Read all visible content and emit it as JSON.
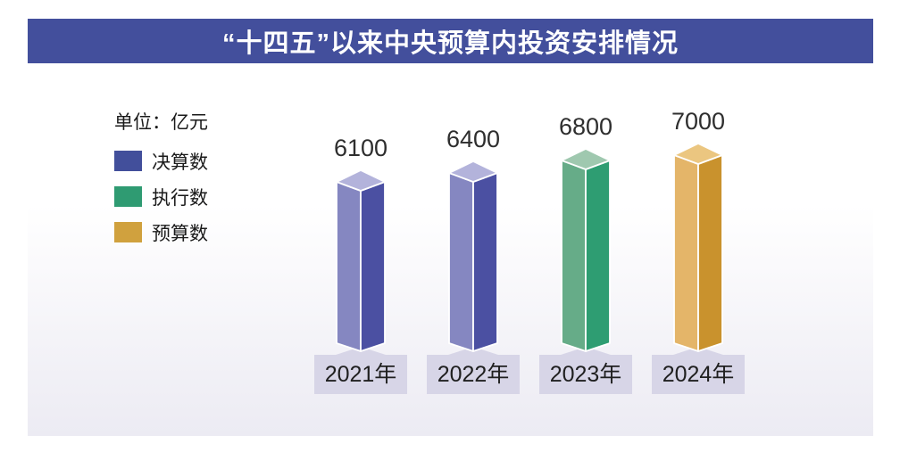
{
  "header": {
    "title": "“十四五”以来中央预算内投资安排情况"
  },
  "legend": {
    "unit_label": "单位：亿元",
    "items": [
      {
        "label": "决算数",
        "color": "#424F9B"
      },
      {
        "label": "执行数",
        "color": "#2F9B72"
      },
      {
        "label": "预算数",
        "color": "#D0A13E"
      }
    ]
  },
  "chart_data": {
    "type": "bar",
    "variant": "3d-column",
    "title": "“十四五”以来中央预算内投资安排情况",
    "unit": "亿元",
    "categories": [
      "2021年",
      "2022年",
      "2023年",
      "2024年"
    ],
    "values": [
      6100,
      6400,
      6800,
      7000
    ],
    "data_labels": [
      "6100",
      "6400",
      "6800",
      "7000"
    ],
    "series_of_bar": [
      "决算数",
      "决算数",
      "执行数",
      "预算数"
    ],
    "ylim": [
      0,
      7000
    ],
    "grid": false,
    "legend_position": "left",
    "bar_face_colors": {
      "决算数": {
        "top": "#B3B3DB",
        "left": "#8587C1",
        "right": "#4B50A2"
      },
      "执行数": {
        "top": "#9FC8AF",
        "left": "#66AC88",
        "right": "#2E9D72"
      },
      "预算数": {
        "top": "#EBC680",
        "left": "#E4B569",
        "right": "#C9922D"
      }
    }
  },
  "colors": {
    "page_background": "#FFFFFF",
    "title_bar": "#434F9C",
    "title_text": "#FFFFFF",
    "panel_gradient_top": "#FFFFFF",
    "panel_gradient_bottom": "#ECEBF3",
    "category_box": "#D7D5E7",
    "value_text": "#2E2E2E",
    "category_text": "#1F1F1F",
    "legend_text": "#1A1A1A"
  }
}
